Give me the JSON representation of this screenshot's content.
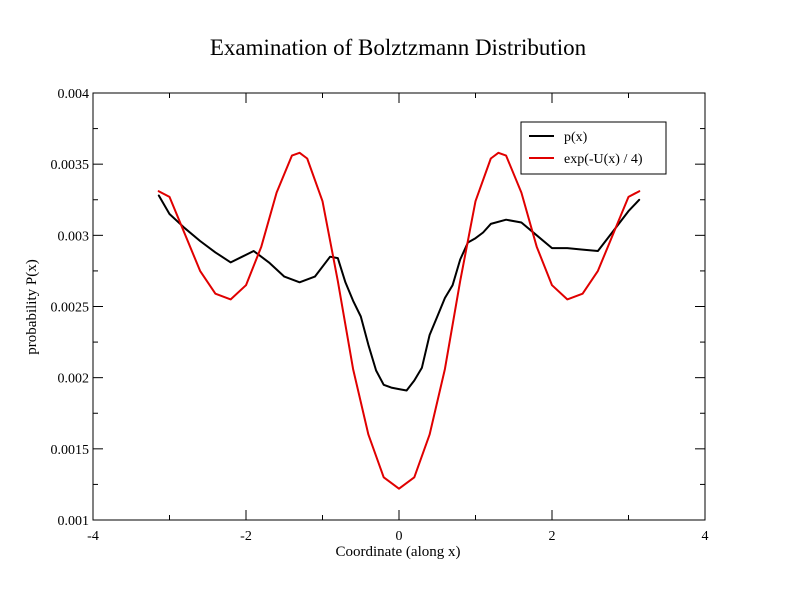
{
  "chart_data": {
    "type": "line",
    "title": "Examination of Bolztzmann Distribution",
    "xlabel": "Coordinate (along x)",
    "ylabel": "probability P(x)",
    "xlim": [
      -4,
      4
    ],
    "ylim": [
      0.001,
      0.004
    ],
    "x_ticks": [
      "-4",
      "-2",
      "0",
      "2",
      "4"
    ],
    "y_ticks": [
      "0.001",
      "0.0015",
      "0.002",
      "0.0025",
      "0.003",
      "0.0035",
      "0.004"
    ],
    "x_tick_values": [
      -4,
      -2,
      0,
      2,
      4
    ],
    "y_tick_values": [
      0.001,
      0.0015,
      0.002,
      0.0025,
      0.003,
      0.0035,
      0.004
    ],
    "grid": false,
    "legend_position": "top-right",
    "series": [
      {
        "name": "p(x)",
        "color": "#000000",
        "x": [
          -3.14,
          -3.0,
          -2.8,
          -2.6,
          -2.4,
          -2.2,
          -2.05,
          -1.9,
          -1.7,
          -1.5,
          -1.3,
          -1.1,
          -0.9,
          -0.8,
          -0.7,
          -0.6,
          -0.5,
          -0.4,
          -0.3,
          -0.2,
          -0.1,
          0.0,
          0.1,
          0.2,
          0.3,
          0.4,
          0.5,
          0.6,
          0.7,
          0.8,
          0.9,
          1.0,
          1.1,
          1.2,
          1.4,
          1.6,
          1.8,
          2.0,
          2.2,
          2.4,
          2.6,
          2.8,
          3.0,
          3.14
        ],
        "y": [
          0.00328,
          0.00315,
          0.00305,
          0.00296,
          0.00288,
          0.00281,
          0.00285,
          0.00289,
          0.00281,
          0.00271,
          0.00267,
          0.00271,
          0.00285,
          0.00284,
          0.00267,
          0.00254,
          0.00243,
          0.00223,
          0.00205,
          0.00195,
          0.00193,
          0.00192,
          0.00191,
          0.00198,
          0.00207,
          0.0023,
          0.00243,
          0.00256,
          0.00265,
          0.00283,
          0.00295,
          0.00298,
          0.00302,
          0.00308,
          0.00311,
          0.00309,
          0.003,
          0.00291,
          0.00291,
          0.0029,
          0.00289,
          0.00303,
          0.00317,
          0.00325
        ]
      },
      {
        "name": "exp(-U(x) / 4)",
        "color": "#e00000",
        "x": [
          -3.1416,
          -3.0,
          -2.8,
          -2.6,
          -2.4,
          -2.2,
          -2.0,
          -1.8,
          -1.6,
          -1.4,
          -1.3,
          -1.2,
          -1.0,
          -0.8,
          -0.6,
          -0.4,
          -0.2,
          0.0,
          0.2,
          0.4,
          0.6,
          0.8,
          1.0,
          1.2,
          1.3,
          1.4,
          1.6,
          1.8,
          2.0,
          2.2,
          2.4,
          2.6,
          2.8,
          3.0,
          3.1416
        ],
        "y": [
          0.00331,
          0.00327,
          0.00301,
          0.00275,
          0.00259,
          0.00255,
          0.00265,
          0.00292,
          0.0033,
          0.00356,
          0.00358,
          0.00354,
          0.00324,
          0.00268,
          0.00206,
          0.0016,
          0.0013,
          0.00122,
          0.0013,
          0.0016,
          0.00206,
          0.00268,
          0.00324,
          0.00354,
          0.00358,
          0.00356,
          0.0033,
          0.00292,
          0.00265,
          0.00255,
          0.00259,
          0.00275,
          0.00301,
          0.00327,
          0.00331
        ]
      }
    ]
  }
}
